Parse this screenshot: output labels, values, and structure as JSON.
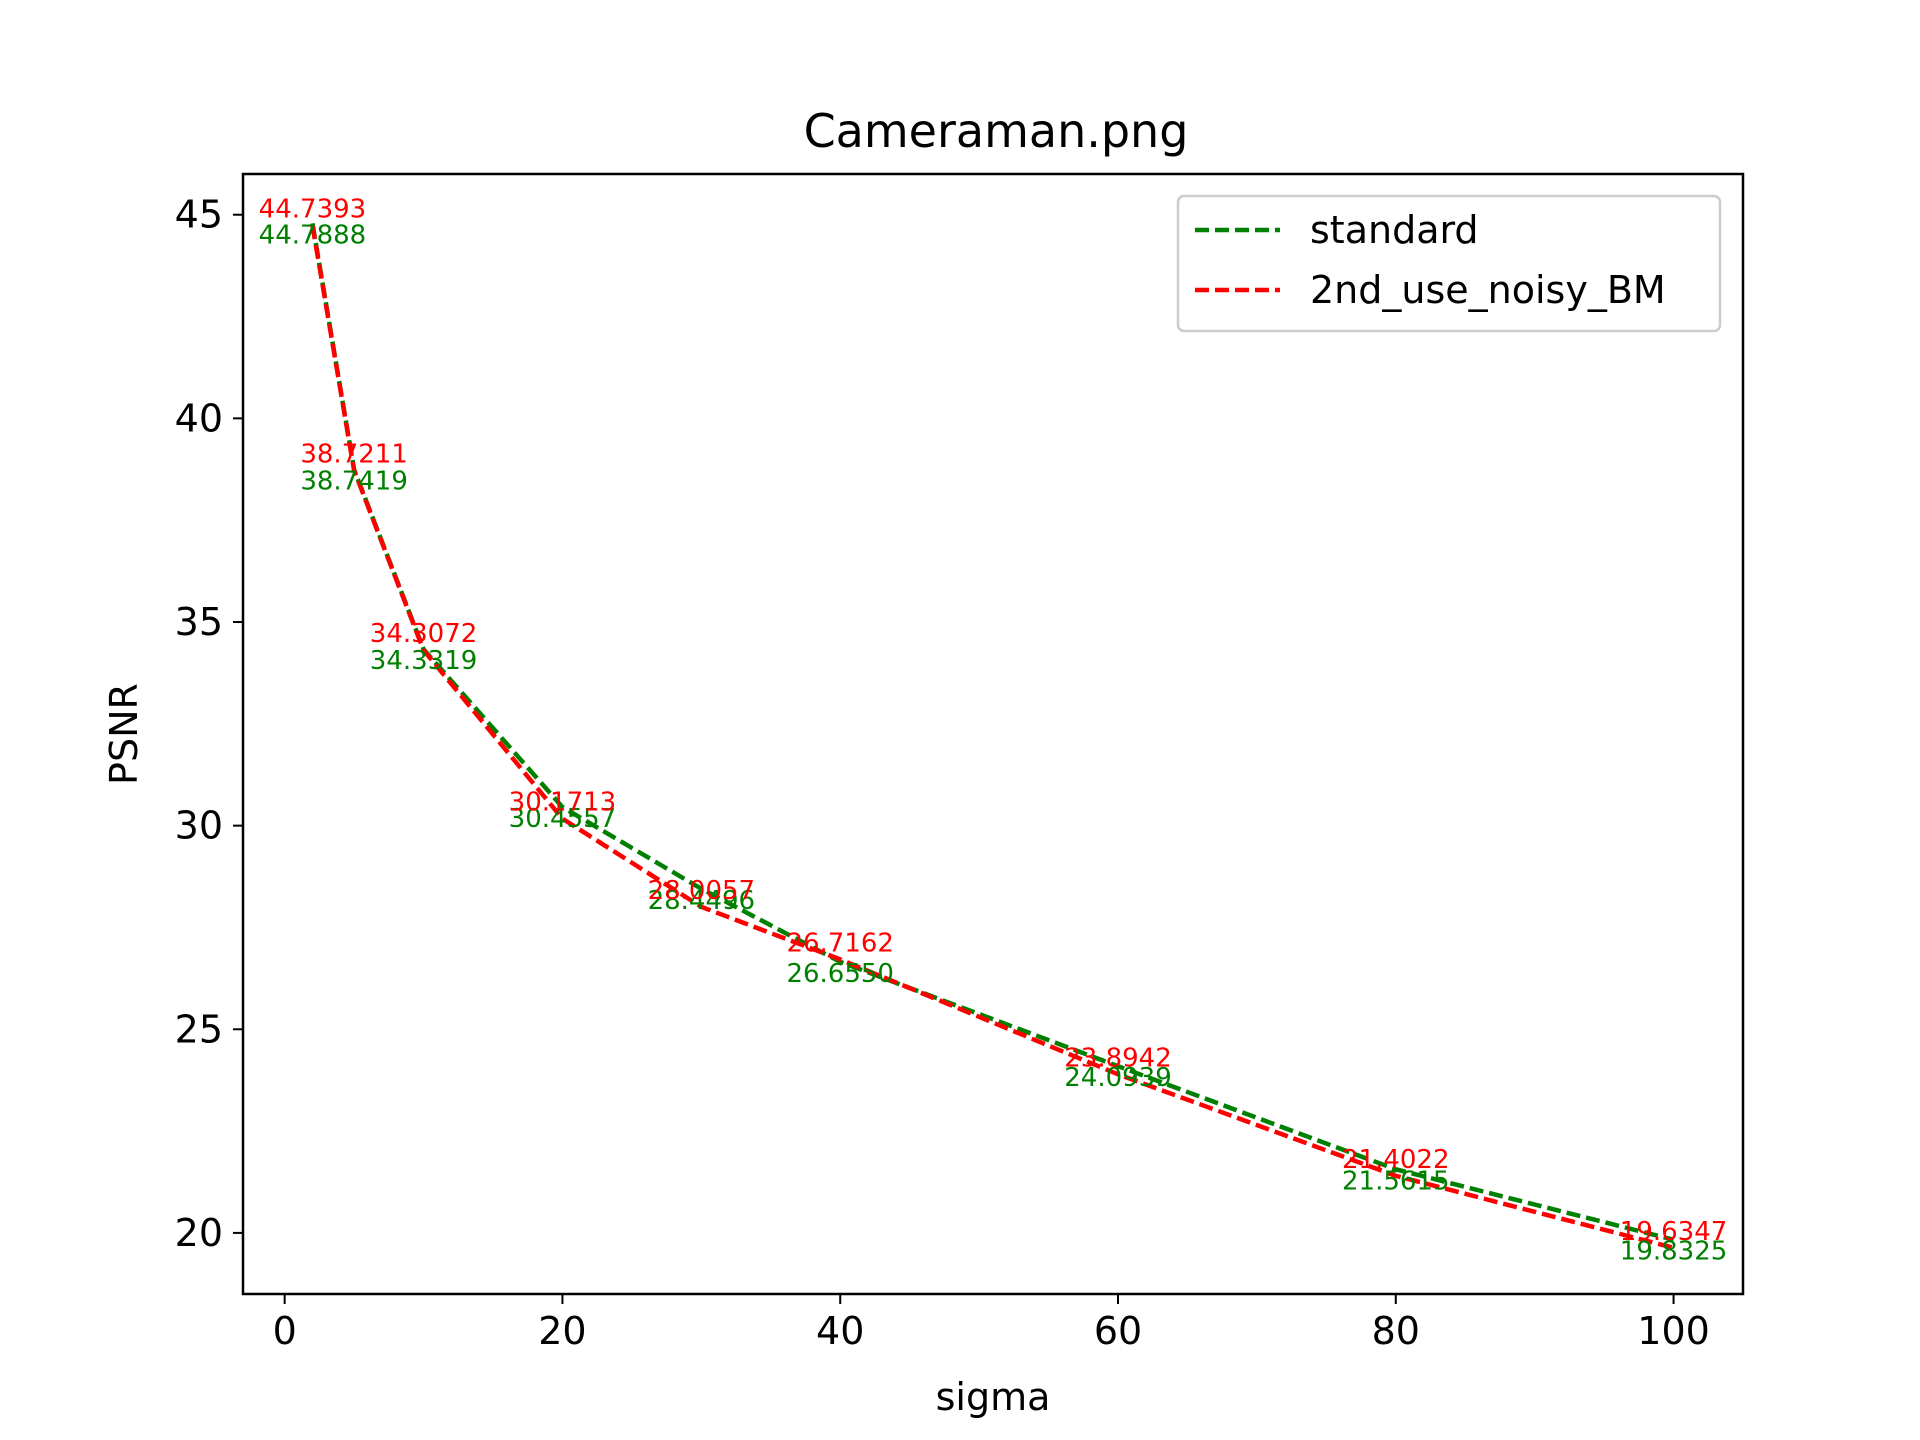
{
  "chart_data": {
    "type": "line",
    "title": "Cameraman.png",
    "xlabel": "sigma",
    "ylabel": "PSNR",
    "xlim": [
      -3,
      105
    ],
    "ylim": [
      18.5,
      46
    ],
    "xticks": [
      0,
      20,
      40,
      60,
      80,
      100
    ],
    "yticks": [
      20,
      25,
      30,
      35,
      40,
      45
    ],
    "grid": false,
    "legend_position": "top-right",
    "x": [
      2,
      5,
      10,
      20,
      30,
      40,
      60,
      80,
      100
    ],
    "series": [
      {
        "name": "standard",
        "color": "#008000",
        "line_style": "dashed",
        "values": [
          44.7888,
          38.7419,
          34.3319,
          30.4557,
          28.4496,
          26.655,
          24.0939,
          21.5615,
          19.8325
        ],
        "labels": [
          "44.7888",
          "38.7419",
          "34.3319",
          "30.4557",
          "28.4496",
          "26.6550",
          "24.0939",
          "21.5615",
          "19.8325"
        ]
      },
      {
        "name": "2nd_use_noisy_BM",
        "color": "#ff0000",
        "line_style": "dashed",
        "values": [
          44.7393,
          38.7211,
          34.3072,
          30.1713,
          28.0057,
          26.7162,
          23.8942,
          21.4022,
          19.6347
        ],
        "labels": [
          "44.7393",
          "38.7211",
          "34.3072",
          "30.1713",
          "28.0057",
          "26.7162",
          "23.8942",
          "21.4022",
          "19.6347"
        ]
      }
    ]
  }
}
